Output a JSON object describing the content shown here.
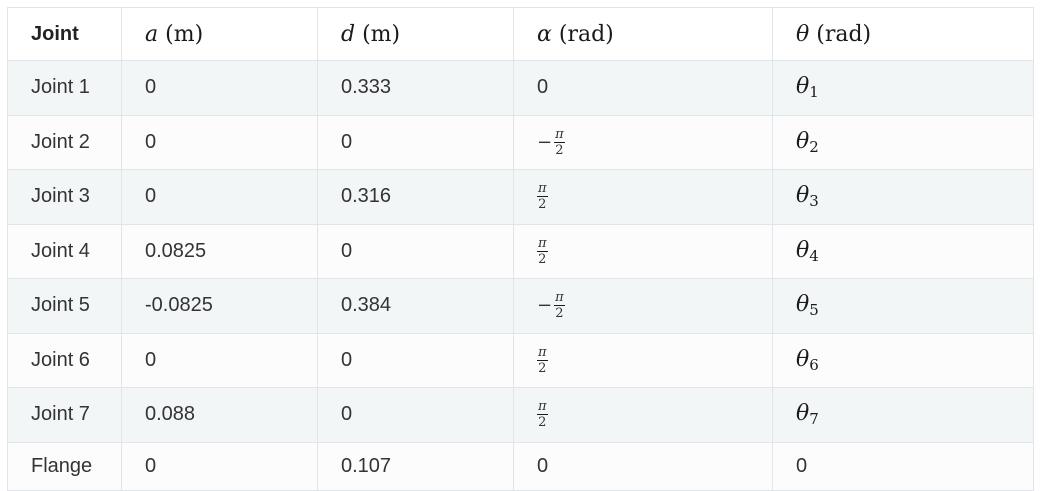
{
  "table": {
    "headers": {
      "joint": "Joint",
      "a_var": "a",
      "a_unit": "(m)",
      "d_var": "d",
      "d_unit": "(m)",
      "alpha_var": "α",
      "alpha_unit": "(rad)",
      "theta_var": "θ",
      "theta_unit": "(rad)"
    },
    "frac": {
      "pi": "π",
      "two": "2",
      "minus": "−"
    },
    "rows": [
      {
        "joint": "Joint 1",
        "a": "0",
        "d": "0.333",
        "alpha": "0",
        "alpha_kind": "plain",
        "theta_var": "θ",
        "theta_sub": "1"
      },
      {
        "joint": "Joint 2",
        "a": "0",
        "d": "0",
        "alpha": "−π/2",
        "alpha_kind": "neg-frac",
        "theta_var": "θ",
        "theta_sub": "2"
      },
      {
        "joint": "Joint 3",
        "a": "0",
        "d": "0.316",
        "alpha": "π/2",
        "alpha_kind": "frac",
        "theta_var": "θ",
        "theta_sub": "3"
      },
      {
        "joint": "Joint 4",
        "a": "0.0825",
        "d": "0",
        "alpha": "π/2",
        "alpha_kind": "frac",
        "theta_var": "θ",
        "theta_sub": "4"
      },
      {
        "joint": "Joint 5",
        "a": "-0.0825",
        "d": "0.384",
        "alpha": "−π/2",
        "alpha_kind": "neg-frac",
        "theta_var": "θ",
        "theta_sub": "5"
      },
      {
        "joint": "Joint 6",
        "a": "0",
        "d": "0",
        "alpha": "π/2",
        "alpha_kind": "frac",
        "theta_var": "θ",
        "theta_sub": "6"
      },
      {
        "joint": "Joint 7",
        "a": "0.088",
        "d": "0",
        "alpha": "π/2",
        "alpha_kind": "frac",
        "theta_var": "θ",
        "theta_sub": "7"
      },
      {
        "joint": "Flange",
        "a": "0",
        "d": "0.107",
        "alpha": "0",
        "alpha_kind": "plain",
        "theta_plain": "0"
      }
    ]
  }
}
